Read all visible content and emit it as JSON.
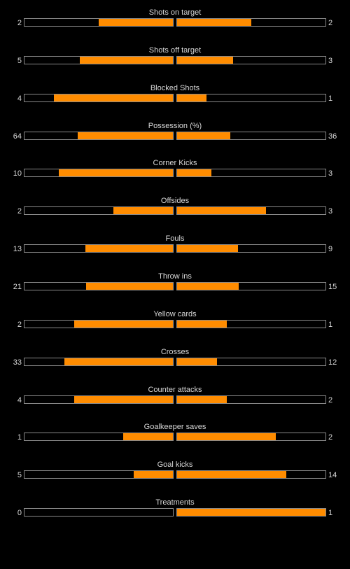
{
  "colors": {
    "background": "#000000",
    "bar_fill": "#ff8c00",
    "bar_border": "#8a8a8a",
    "text": "#d8d8d8"
  },
  "stats": [
    {
      "label": "Shots on target",
      "home": "2",
      "away": "2",
      "home_fraction": 0.5,
      "away_fraction": 0.5
    },
    {
      "label": "Shots off target",
      "home": "5",
      "away": "3",
      "home_fraction": 0.625,
      "away_fraction": 0.375
    },
    {
      "label": "Blocked Shots",
      "home": "4",
      "away": "1",
      "home_fraction": 0.8,
      "away_fraction": 0.2
    },
    {
      "label": "Possession (%)",
      "home": "64",
      "away": "36",
      "home_fraction": 0.64,
      "away_fraction": 0.36
    },
    {
      "label": "Corner Kicks",
      "home": "10",
      "away": "3",
      "home_fraction": 0.769,
      "away_fraction": 0.231
    },
    {
      "label": "Offsides",
      "home": "2",
      "away": "3",
      "home_fraction": 0.4,
      "away_fraction": 0.6
    },
    {
      "label": "Fouls",
      "home": "13",
      "away": "9",
      "home_fraction": 0.591,
      "away_fraction": 0.409
    },
    {
      "label": "Throw ins",
      "home": "21",
      "away": "15",
      "home_fraction": 0.583,
      "away_fraction": 0.417
    },
    {
      "label": "Yellow cards",
      "home": "2",
      "away": "1",
      "home_fraction": 0.667,
      "away_fraction": 0.333
    },
    {
      "label": "Crosses",
      "home": "33",
      "away": "12",
      "home_fraction": 0.733,
      "away_fraction": 0.267
    },
    {
      "label": "Counter attacks",
      "home": "4",
      "away": "2",
      "home_fraction": 0.667,
      "away_fraction": 0.333
    },
    {
      "label": "Goalkeeper saves",
      "home": "1",
      "away": "2",
      "home_fraction": 0.333,
      "away_fraction": 0.667
    },
    {
      "label": "Goal kicks",
      "home": "5",
      "away": "14",
      "home_fraction": 0.263,
      "away_fraction": 0.737
    },
    {
      "label": "Treatments",
      "home": "0",
      "away": "1",
      "home_fraction": 0.0,
      "away_fraction": 1.0
    }
  ]
}
